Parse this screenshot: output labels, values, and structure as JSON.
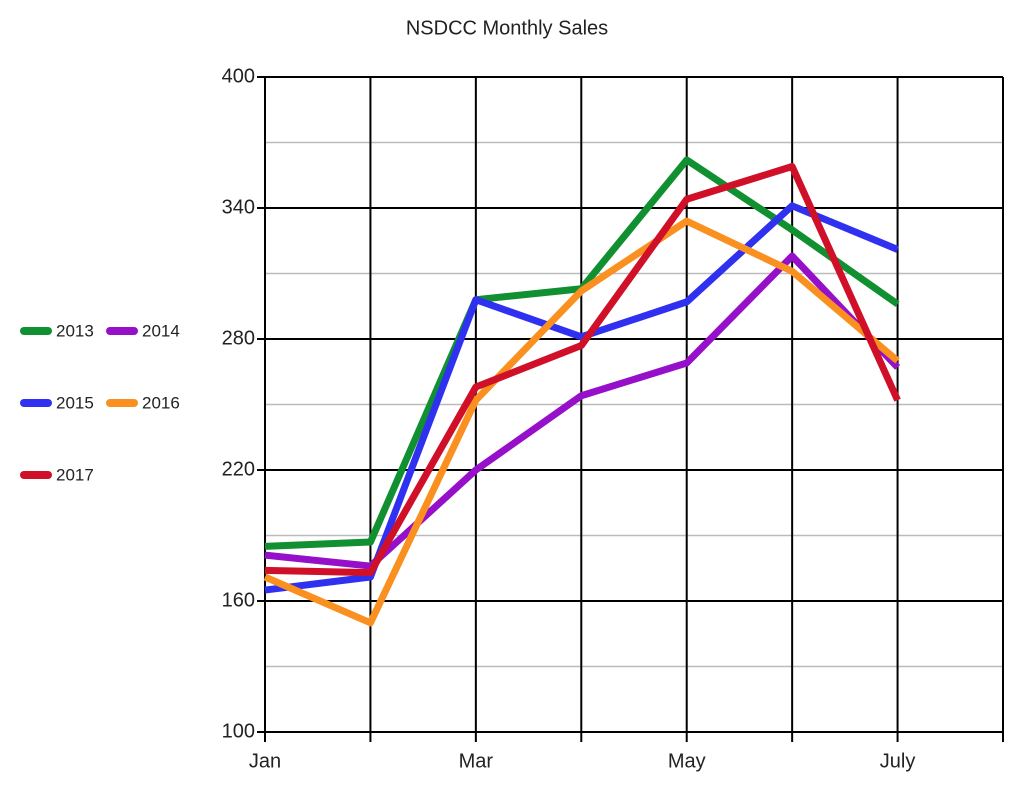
{
  "chart_data": {
    "type": "line",
    "title": "NSDCC Monthly Sales",
    "categories": [
      "Jan",
      null,
      "Mar",
      null,
      "May",
      null,
      "July",
      null
    ],
    "series": [
      {
        "name": "2013",
        "color": "#109030",
        "values": [
          185,
          187,
          298,
          303,
          362,
          330,
          296,
          null
        ]
      },
      {
        "name": "2014",
        "color": "#9510c8",
        "values": [
          181,
          176,
          220,
          254,
          269,
          318,
          267,
          null
        ]
      },
      {
        "name": "2015",
        "color": "#3030f0",
        "values": [
          165,
          171,
          298,
          281,
          297,
          341,
          321,
          null
        ]
      },
      {
        "name": "2016",
        "color": "#fa9020",
        "values": [
          171,
          150,
          252,
          302,
          334,
          311,
          270,
          null
        ]
      },
      {
        "name": "2017",
        "color": "#d01028",
        "values": [
          174,
          173,
          258,
          277,
          344,
          359,
          252,
          null
        ]
      }
    ],
    "ylim": [
      100,
      400
    ],
    "yticks": [
      100,
      160,
      220,
      280,
      340,
      400
    ],
    "minor_yticks": [
      130,
      190,
      250,
      310,
      370
    ],
    "grid": true,
    "legend": "left"
  }
}
